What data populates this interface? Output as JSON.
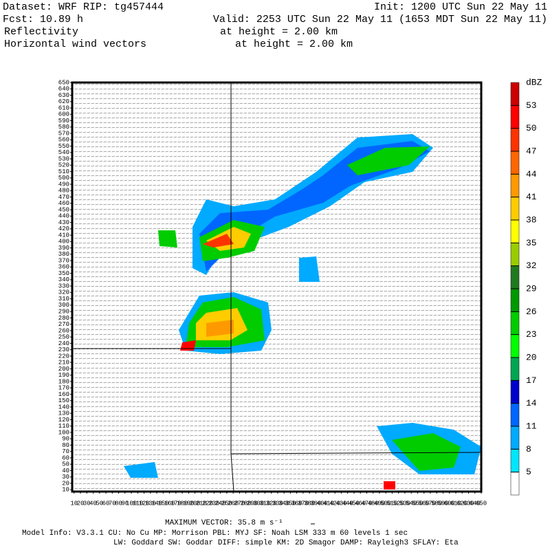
{
  "header": {
    "dataset": "Dataset: WRF  RIP: tg457444",
    "init": "Init: 1200 UTC Sun 22 May 11",
    "fcst": "Fcst:   10.89 h",
    "valid": "Valid: 2253 UTC Sun 22 May 11 (1653 MDT Sun 22 May 11)",
    "field1": "Reflectivity",
    "field1_level": "at height =  2.00 km",
    "field2": "Horizontal wind vectors",
    "field2_level": "at height =  2.00 km"
  },
  "axes": {
    "xlim": [
      7,
      650
    ],
    "ylim": [
      7,
      650
    ],
    "xticks": [
      10,
      20,
      30,
      40,
      50,
      60,
      70,
      80,
      90,
      100,
      110,
      120,
      130,
      140,
      150,
      160,
      170,
      180,
      190,
      200,
      210,
      220,
      230,
      240,
      250,
      260,
      270,
      280,
      290,
      300,
      310,
      320,
      330,
      340,
      350,
      360,
      370,
      380,
      390,
      400,
      410,
      420,
      430,
      440,
      450,
      460,
      470,
      480,
      490,
      500,
      510,
      520,
      530,
      540,
      550,
      560,
      570,
      580,
      590,
      600,
      610,
      620,
      630,
      640,
      650
    ],
    "yticks": [
      10,
      20,
      30,
      40,
      50,
      60,
      70,
      80,
      90,
      100,
      110,
      120,
      130,
      140,
      150,
      160,
      170,
      180,
      190,
      200,
      210,
      220,
      230,
      240,
      250,
      260,
      270,
      280,
      290,
      300,
      310,
      320,
      330,
      340,
      350,
      360,
      370,
      380,
      390,
      400,
      410,
      420,
      430,
      440,
      450,
      460,
      470,
      480,
      490,
      500,
      510,
      520,
      530,
      540,
      550,
      560,
      570,
      580,
      590,
      600,
      610,
      620,
      630,
      640,
      650
    ]
  },
  "colorbar": {
    "unit": "dBZ",
    "levels": [
      5,
      8,
      11,
      14,
      17,
      20,
      23,
      26,
      29,
      32,
      35,
      38,
      41,
      44,
      47,
      50,
      53
    ],
    "colors": [
      "#ffffff",
      "#00e6ff",
      "#00aaff",
      "#0066ff",
      "#0000cc",
      "#00a651",
      "#00ff00",
      "#00cc00",
      "#009900",
      "#1f7a1f",
      "#99cc00",
      "#ffff00",
      "#ffcc00",
      "#ff9900",
      "#ff6600",
      "#ff3300",
      "#ff0000",
      "#cc0000"
    ]
  },
  "footer": {
    "max_vector": "MAXIMUM VECTOR:  35.8 m s⁻¹",
    "model_info": "Model Info: V3.3.1    CU: No Cu    MP: Morrison    PBL: MYJ    SF: Noah LSM    333 m    60 levels    1 sec",
    "physics": "LW: Goddard  SW: Goddar  DIFF: simple  KM: 2D Smagor  DAMP: Rayleigh3  SFLAY: Eta"
  }
}
